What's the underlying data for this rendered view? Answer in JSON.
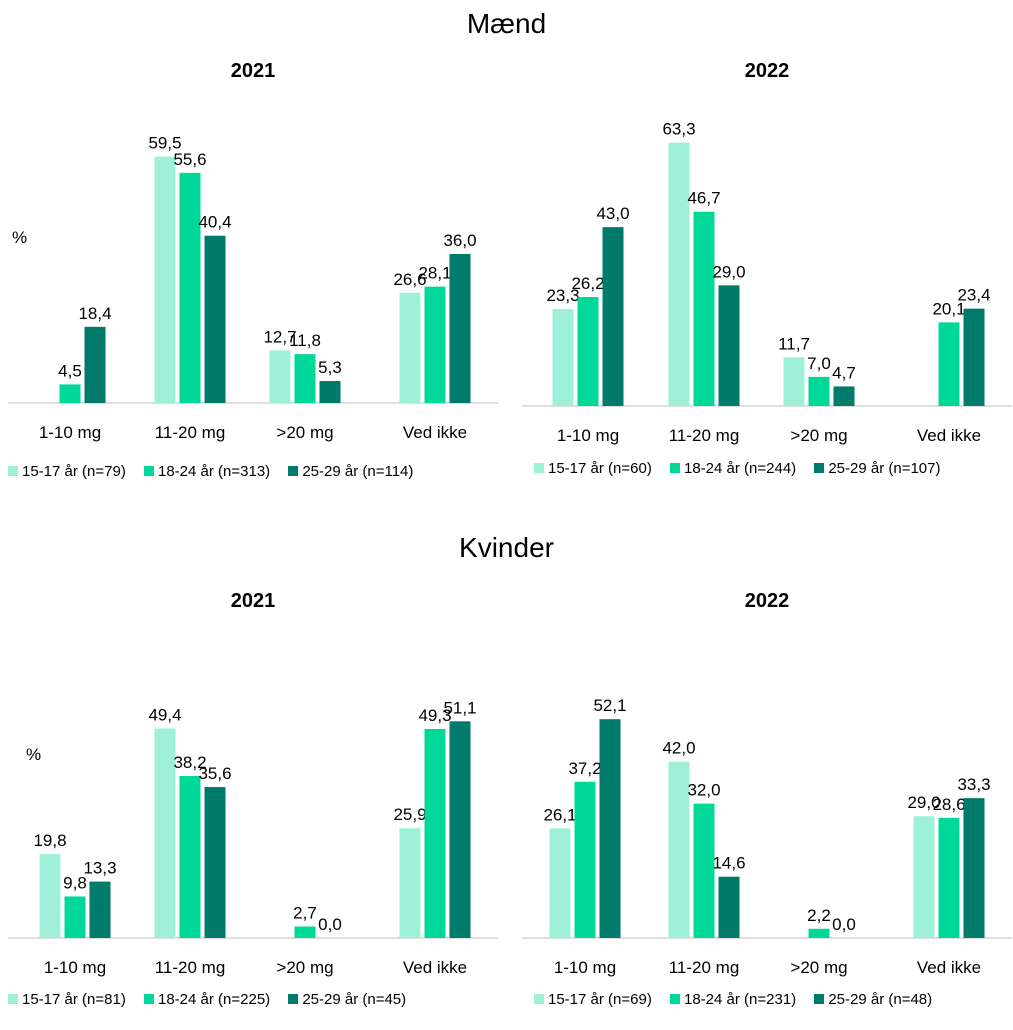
{
  "colors": {
    "c1": "#9ff0d9",
    "c2": "#00d89a",
    "c3": "#007a6a"
  },
  "sections": [
    {
      "title": "Mænd"
    },
    {
      "title": "Kvinder"
    }
  ],
  "chart_data": [
    {
      "type": "bar",
      "section": "Mænd",
      "title": "2021",
      "ylabel": "%",
      "categories": [
        "1-10 mg",
        "11-20 mg",
        ">20 mg",
        "Ved ikke"
      ],
      "series": [
        {
          "name": "15-17 år (n=79)",
          "values": [
            null,
            59.5,
            12.7,
            26.6
          ]
        },
        {
          "name": "18-24 år (n=313)",
          "values": [
            4.5,
            55.6,
            11.8,
            28.1
          ]
        },
        {
          "name": "25-29 år (n=114)",
          "values": [
            18.4,
            40.4,
            5.3,
            36.0
          ]
        }
      ],
      "labels": [
        [
          "",
          "59,5",
          "12,7",
          "26,6"
        ],
        [
          "4,5",
          "55,6",
          "11,8",
          "28,1"
        ],
        [
          "18,4",
          "40,4",
          "5,3",
          "36,0"
        ]
      ],
      "ylim": [
        0,
        70
      ],
      "grid": false,
      "legend": "bottom"
    },
    {
      "type": "bar",
      "section": "Mænd",
      "title": "2022",
      "ylabel": "",
      "categories": [
        "1-10 mg",
        "11-20 mg",
        ">20 mg",
        "Ved ikke"
      ],
      "series": [
        {
          "name": "15-17 år (n=60)",
          "values": [
            23.3,
            63.3,
            11.7,
            null
          ]
        },
        {
          "name": "18-24 år (n=244)",
          "values": [
            26.2,
            46.7,
            7.0,
            20.1
          ]
        },
        {
          "name": "25-29 år (n=107)",
          "values": [
            43.0,
            29.0,
            4.7,
            23.4
          ]
        }
      ],
      "labels": [
        [
          "23,3",
          "63,3",
          "11,7",
          ""
        ],
        [
          "26,2",
          "46,7",
          "7,0",
          "20,1"
        ],
        [
          "43,0",
          "29,0",
          "4,7",
          "23,4"
        ]
      ],
      "ylim": [
        0,
        70
      ],
      "grid": false,
      "legend": "bottom"
    },
    {
      "type": "bar",
      "section": "Kvinder",
      "title": "2021",
      "ylabel": "%",
      "categories": [
        "1-10 mg",
        "11-20 mg",
        ">20 mg",
        "Ved ikke"
      ],
      "series": [
        {
          "name": "15-17 år (n=81)",
          "values": [
            19.8,
            49.4,
            null,
            25.9
          ]
        },
        {
          "name": "18-24 år (n=225)",
          "values": [
            9.8,
            38.2,
            2.7,
            49.3
          ]
        },
        {
          "name": "25-29 år (n=45)",
          "values": [
            13.3,
            35.6,
            0.0,
            51.1
          ]
        }
      ],
      "labels": [
        [
          "19,8",
          "49,4",
          "",
          "25,9"
        ],
        [
          "9,8",
          "38,2",
          "2,7",
          "49,3"
        ],
        [
          "13,3",
          "35,6",
          "0,0",
          "51,1"
        ]
      ],
      "ylim": [
        0,
        60
      ],
      "grid": false,
      "legend": "bottom"
    },
    {
      "type": "bar",
      "section": "Kvinder",
      "title": "2022",
      "ylabel": "",
      "categories": [
        "1-10 mg",
        "11-20 mg",
        ">20 mg",
        "Ved ikke"
      ],
      "series": [
        {
          "name": "15-17 år (n=69)",
          "values": [
            26.1,
            42.0,
            null,
            29.0
          ]
        },
        {
          "name": "18-24 år (n=231)",
          "values": [
            37.2,
            32.0,
            2.2,
            28.6
          ]
        },
        {
          "name": "25-29 år (n=48)",
          "values": [
            52.1,
            14.6,
            0.0,
            33.3
          ]
        }
      ],
      "labels": [
        [
          "26,1",
          "42,0",
          "",
          "29,0"
        ],
        [
          "37,2",
          "32,0",
          "2,2",
          "28,6"
        ],
        [
          "52,1",
          "14,6",
          "0,0",
          "33,3"
        ]
      ],
      "ylim": [
        0,
        60
      ],
      "grid": false,
      "legend": "bottom"
    }
  ]
}
